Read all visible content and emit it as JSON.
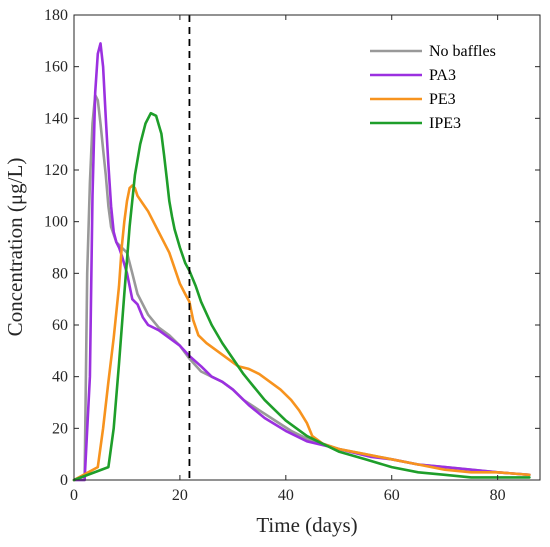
{
  "chart_data": {
    "type": "line",
    "xlabel": "Time (days)",
    "ylabel": "Concentration (μg/L)",
    "xlim": [
      0,
      88
    ],
    "ylim": [
      0,
      180
    ],
    "xticks": [
      0,
      20,
      40,
      60,
      80
    ],
    "yticks": [
      0,
      20,
      40,
      60,
      80,
      100,
      120,
      140,
      160,
      180
    ],
    "grid": false,
    "legend_position": "top-right",
    "vline_x": 21.8,
    "series": [
      {
        "name": "No baffles",
        "color": "#999999",
        "x": [
          0,
          2.0,
          2.5,
          3.0,
          3.5,
          4.0,
          4.5,
          5.0,
          5.5,
          6.0,
          6.5,
          7.0,
          8.0,
          9.0,
          10.0,
          11.0,
          12.0,
          13.0,
          14.0,
          16.0,
          18.0,
          20.0,
          21.8,
          24.0,
          26.0,
          28.0,
          30.0,
          32.0,
          35.0,
          38.0,
          41.0,
          44.0,
          47.0,
          50.0,
          55.0,
          60.0,
          65.0,
          70.0,
          75.0,
          80.0,
          86.0
        ],
        "y": [
          0,
          0,
          80,
          115,
          138,
          149,
          147,
          138,
          128,
          118,
          106,
          98,
          92,
          90,
          88,
          80,
          72,
          68,
          64,
          59,
          56,
          52,
          47,
          42,
          40,
          38,
          35,
          31,
          27,
          23,
          19,
          16,
          14,
          12,
          10,
          8,
          6,
          5,
          4,
          3,
          2
        ]
      },
      {
        "name": "PA3",
        "color": "#9b30e0",
        "x": [
          0,
          2.0,
          3.0,
          3.5,
          4.0,
          4.5,
          5.0,
          5.5,
          6.0,
          6.5,
          7.0,
          7.5,
          8.0,
          8.5,
          9.0,
          10.0,
          11.0,
          12.0,
          13.0,
          14.0,
          16.0,
          18.0,
          20.0,
          21.8,
          24.0,
          26.0,
          28.0,
          30.0,
          33.0,
          36.0,
          40.0,
          44.0,
          48.0,
          52.0,
          56.0,
          60.0,
          65.0,
          70.0,
          75.0,
          80.0,
          86.0
        ],
        "y": [
          0,
          0,
          40,
          110,
          150,
          165,
          169,
          160,
          140,
          122,
          106,
          96,
          92,
          90,
          87,
          80,
          70,
          68,
          63,
          60,
          58,
          55,
          52,
          48,
          44,
          40,
          38,
          35,
          29,
          24,
          19,
          15,
          13,
          11,
          9,
          8,
          6,
          5,
          4,
          3,
          2
        ]
      },
      {
        "name": "PE3",
        "color": "#f7931e",
        "x": [
          0,
          4.5,
          5.5,
          6.5,
          7.5,
          8.5,
          9.0,
          9.5,
          10.0,
          10.5,
          11.0,
          11.5,
          12.0,
          13.0,
          14.0,
          15.0,
          16.0,
          17.0,
          18.0,
          19.0,
          20.0,
          21.0,
          21.8,
          22.5,
          23.5,
          25.0,
          27.0,
          29.0,
          31.0,
          33.0,
          35.0,
          37.0,
          39.0,
          41.0,
          42.5,
          44.0,
          45.0,
          47.0,
          50.0,
          55.0,
          60.0,
          65.0,
          70.0,
          75.0,
          80.0,
          86.0
        ],
        "y": [
          0,
          5,
          20,
          38,
          55,
          75,
          90,
          100,
          108,
          113,
          114,
          113,
          110,
          107,
          104,
          100,
          96,
          92,
          88,
          82,
          76,
          72,
          69,
          62,
          56,
          53,
          50,
          47,
          44,
          43,
          41,
          38,
          35,
          31,
          27,
          22,
          17,
          14,
          12,
          10,
          8,
          6,
          4,
          3,
          3,
          2
        ]
      },
      {
        "name": "IPE3",
        "color": "#1e9e2a",
        "x": [
          0,
          6.5,
          7.5,
          8.5,
          9.5,
          10.5,
          11.5,
          12.5,
          13.5,
          14.5,
          15.5,
          16.5,
          17.0,
          17.5,
          18.0,
          18.5,
          19.0,
          20.0,
          21.0,
          21.8,
          23.0,
          24.0,
          26.0,
          28.0,
          30.0,
          32.0,
          34.0,
          36.0,
          38.0,
          40.0,
          42.0,
          44.0,
          46.0,
          48.0,
          50.0,
          55.0,
          60.0,
          65.0,
          70.0,
          75.0,
          80.0,
          86.0
        ],
        "y": [
          0,
          5,
          20,
          45,
          72,
          98,
          118,
          130,
          138,
          142,
          141,
          134,
          126,
          117,
          108,
          102,
          97,
          90,
          84,
          81,
          75,
          69,
          60,
          53,
          47,
          41,
          36,
          31,
          27,
          23,
          20,
          17,
          15,
          13,
          11,
          8,
          5,
          3,
          2,
          1,
          1,
          1
        ]
      }
    ]
  }
}
